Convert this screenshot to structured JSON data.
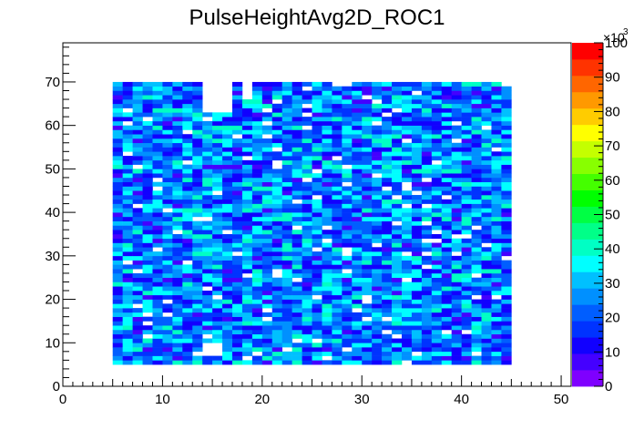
{
  "chart_data": {
    "type": "heatmap",
    "title": "PulseHeightAvg2D_ROC1",
    "xlabel": "",
    "ylabel": "",
    "xlim": [
      0,
      51
    ],
    "ylim": [
      0,
      79
    ],
    "x_ticks": [
      "0",
      "10",
      "20",
      "30",
      "40",
      "50"
    ],
    "y_ticks": [
      "0",
      "10",
      "20",
      "30",
      "40",
      "50",
      "60",
      "70"
    ],
    "z_ticks": [
      "0",
      "10",
      "20",
      "30",
      "40",
      "50",
      "60",
      "70",
      "80",
      "90",
      "100"
    ],
    "z_exponent_label": "×10",
    "z_exponent_power": "3",
    "zlim": [
      0,
      100000
    ],
    "palette": [
      "#7f00ff",
      "#4400ff",
      "#1100ff",
      "#0033ff",
      "#005eff",
      "#0090ff",
      "#00c0ff",
      "#00ffff",
      "#00ffc4",
      "#00ff88",
      "#00ff44",
      "#00ff00",
      "#44ff00",
      "#88ff00",
      "#c4ff00",
      "#ffff00",
      "#ffcc00",
      "#ff9900",
      "#ff6600",
      "#ff3300",
      "#ff0000"
    ],
    "bins": {
      "x_start": 5,
      "x_end": 45,
      "bin_width": 1,
      "y_start": 5,
      "y_end": 70,
      "bin_height": 1,
      "typical_z": [
        8000,
        40000
      ],
      "empty_regions": [
        {
          "x": [
            14,
            17
          ],
          "y": [
            63,
            70
          ]
        },
        {
          "x": [
            18,
            19
          ],
          "y": [
            66,
            70
          ]
        },
        {
          "x": [
            14,
            16
          ],
          "y": [
            7,
            10
          ]
        }
      ]
    }
  }
}
